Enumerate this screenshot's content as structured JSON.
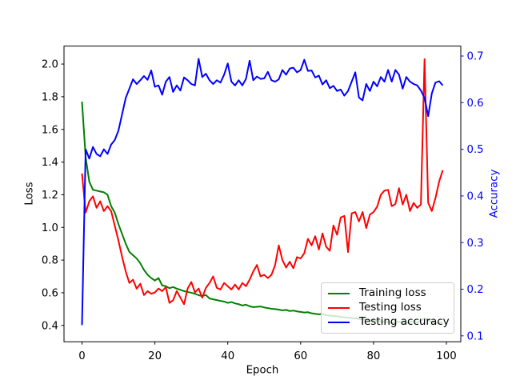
{
  "figure": {
    "xlabel": "Epoch",
    "ylabel_left": "Loss",
    "ylabel_right": "Accuracy"
  },
  "legend": {
    "position": "lower right",
    "items": [
      {
        "label": "Training loss",
        "color": "#008000"
      },
      {
        "label": "Testing loss",
        "color": "#ff0000"
      },
      {
        "label": "Testing accuracy",
        "color": "#0000ff"
      }
    ]
  },
  "chart_data": {
    "type": "line",
    "title": "",
    "xlabel": "Epoch",
    "ylabel": "Loss",
    "ylabel_right": "Accuracy",
    "grid": false,
    "legend_position": "lower right",
    "xlim": [
      -4.94,
      103.95
    ],
    "ylim_left": [
      0.3,
      2.11
    ],
    "ylim_right": [
      0.0873,
      0.7213
    ],
    "x_ticks": [
      0,
      20,
      40,
      60,
      80,
      100
    ],
    "y_ticks_left": [
      0.4,
      0.6,
      0.8,
      1.0,
      1.2,
      1.4,
      1.6,
      1.8,
      2.0
    ],
    "y_ticks_right": [
      0.1,
      0.2,
      0.3,
      0.4,
      0.5,
      0.6,
      0.7
    ],
    "y_tick_decimals": 1,
    "axis_colors": {
      "left": "#000000",
      "right": "#0000ff",
      "spine": "#000000"
    },
    "x": [
      0,
      1,
      2,
      3,
      4,
      5,
      6,
      7,
      8,
      9,
      10,
      11,
      12,
      13,
      14,
      15,
      16,
      17,
      18,
      19,
      20,
      21,
      22,
      23,
      24,
      25,
      26,
      27,
      28,
      29,
      30,
      31,
      32,
      33,
      34,
      35,
      36,
      37,
      38,
      39,
      40,
      41,
      42,
      43,
      44,
      45,
      46,
      47,
      48,
      49,
      50,
      51,
      52,
      53,
      54,
      55,
      56,
      57,
      58,
      59,
      60,
      61,
      62,
      63,
      64,
      65,
      66,
      67,
      68,
      69,
      70,
      71,
      72,
      73,
      74,
      75,
      76,
      77,
      78,
      79,
      80,
      81,
      82,
      83,
      84,
      85,
      86,
      87,
      88,
      89,
      90,
      91,
      92,
      93,
      94,
      95,
      96,
      97,
      98,
      99
    ],
    "series": [
      {
        "name": "Training loss",
        "axis": "left",
        "color": "#008000",
        "values": [
          1.77,
          1.43,
          1.28,
          1.23,
          1.225,
          1.22,
          1.215,
          1.2,
          1.13,
          1.09,
          1.02,
          0.96,
          0.9,
          0.85,
          0.83,
          0.81,
          0.78,
          0.74,
          0.71,
          0.69,
          0.675,
          0.69,
          0.645,
          0.64,
          0.628,
          0.635,
          0.625,
          0.618,
          0.61,
          0.605,
          0.6,
          0.594,
          0.585,
          0.58,
          0.586,
          0.565,
          0.56,
          0.555,
          0.55,
          0.546,
          0.538,
          0.543,
          0.535,
          0.53,
          0.522,
          0.527,
          0.517,
          0.512,
          0.514,
          0.516,
          0.51,
          0.506,
          0.502,
          0.5,
          0.497,
          0.492,
          0.495,
          0.488,
          0.491,
          0.486,
          0.483,
          0.479,
          0.481,
          0.474,
          0.471,
          0.468,
          0.47,
          0.463,
          0.46,
          0.458,
          0.456,
          0.452,
          0.45,
          0.448,
          0.445,
          0.443,
          0.44,
          0.437,
          0.435,
          0.432,
          0.43,
          0.428,
          0.425,
          0.421,
          0.419,
          0.417,
          0.421,
          0.423,
          0.417,
          0.415,
          0.421,
          0.426,
          0.419,
          0.43,
          0.441,
          0.434,
          0.421,
          0.415,
          0.418,
          0.417
        ]
      },
      {
        "name": "Testing loss",
        "axis": "left",
        "color": "#ff0000",
        "values": [
          1.33,
          1.09,
          1.16,
          1.19,
          1.12,
          1.16,
          1.1,
          1.13,
          1.1,
          1.01,
          0.92,
          0.82,
          0.73,
          0.66,
          0.68,
          0.625,
          0.655,
          0.586,
          0.61,
          0.594,
          0.602,
          0.626,
          0.61,
          0.634,
          0.538,
          0.554,
          0.61,
          0.57,
          0.53,
          0.626,
          0.666,
          0.602,
          0.626,
          0.57,
          0.63,
          0.66,
          0.7,
          0.63,
          0.62,
          0.66,
          0.64,
          0.62,
          0.65,
          0.62,
          0.66,
          0.64,
          0.68,
          0.73,
          0.77,
          0.7,
          0.71,
          0.69,
          0.71,
          0.77,
          0.89,
          0.8,
          0.754,
          0.79,
          0.75,
          0.818,
          0.81,
          0.842,
          0.93,
          0.89,
          0.946,
          0.865,
          0.963,
          0.882,
          0.857,
          1.012,
          0.955,
          1.061,
          1.07,
          0.849,
          1.086,
          1.094,
          1.037,
          1.094,
          0.996,
          1.078,
          1.094,
          1.127,
          1.2,
          1.225,
          1.23,
          1.13,
          1.143,
          1.24,
          1.14,
          1.2,
          1.1,
          1.15,
          1.12,
          1.14,
          2.03,
          1.15,
          1.1,
          1.18,
          1.28,
          1.35
        ]
      },
      {
        "name": "Testing accuracy",
        "axis": "right",
        "color": "#0000ff",
        "values": [
          0.123,
          0.5,
          0.48,
          0.505,
          0.49,
          0.485,
          0.5,
          0.49,
          0.51,
          0.52,
          0.54,
          0.575,
          0.61,
          0.63,
          0.65,
          0.64,
          0.648,
          0.657,
          0.649,
          0.669,
          0.634,
          0.637,
          0.617,
          0.645,
          0.655,
          0.623,
          0.637,
          0.626,
          0.654,
          0.648,
          0.64,
          0.637,
          0.694,
          0.655,
          0.662,
          0.648,
          0.64,
          0.648,
          0.643,
          0.66,
          0.684,
          0.645,
          0.637,
          0.648,
          0.637,
          0.651,
          0.69,
          0.648,
          0.656,
          0.651,
          0.652,
          0.666,
          0.648,
          0.645,
          0.65,
          0.67,
          0.66,
          0.673,
          0.675,
          0.665,
          0.67,
          0.692,
          0.668,
          0.669,
          0.654,
          0.658,
          0.639,
          0.648,
          0.631,
          0.636,
          0.625,
          0.628,
          0.615,
          0.625,
          0.645,
          0.665,
          0.611,
          0.605,
          0.64,
          0.625,
          0.645,
          0.635,
          0.655,
          0.645,
          0.67,
          0.645,
          0.67,
          0.66,
          0.63,
          0.655,
          0.645,
          0.64,
          0.637,
          0.626,
          0.61,
          0.571,
          0.62,
          0.643,
          0.646,
          0.637
        ]
      }
    ]
  }
}
